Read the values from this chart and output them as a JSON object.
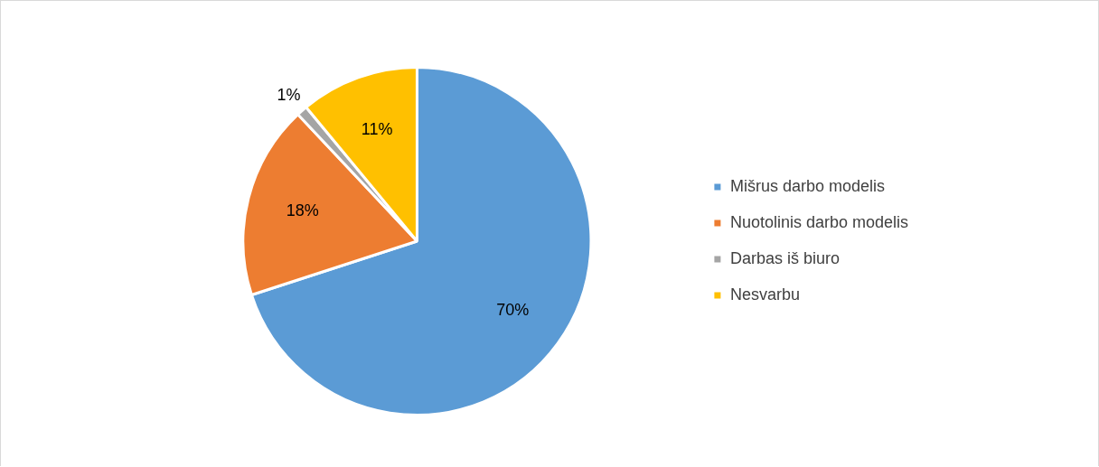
{
  "chart_data": {
    "type": "pie",
    "categories": [
      "Mišrus darbo modelis",
      "Nuotolinis darbo modelis",
      "Darbas iš biuro",
      "Nesvarbu"
    ],
    "values": [
      70,
      18,
      1,
      11
    ],
    "colors": [
      "#5b9bd5",
      "#ed7d31",
      "#a5a5a5",
      "#ffc000"
    ],
    "value_labels": [
      "70%",
      "18%",
      "1%",
      "11%"
    ],
    "legend": "right"
  }
}
